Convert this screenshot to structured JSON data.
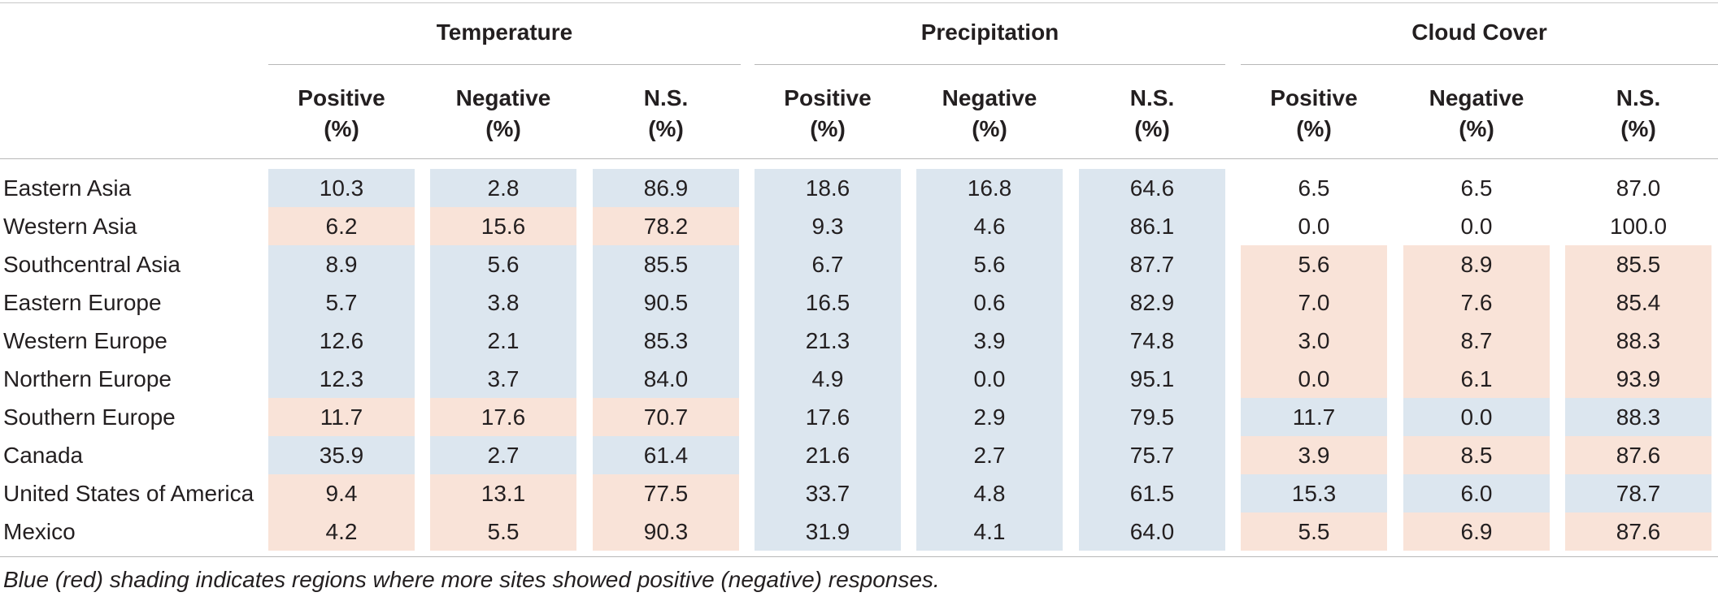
{
  "groups": [
    "Temperature",
    "Precipitation",
    "Cloud Cover"
  ],
  "subheaders": [
    {
      "line1": "Positive",
      "line2": "(%)"
    },
    {
      "line1": "Negative",
      "line2": "(%)"
    },
    {
      "line1": "N.S.",
      "line2": "(%)"
    }
  ],
  "shade_colors": {
    "positive": "#dce6ef",
    "negative": "#f9e3d8"
  },
  "rows": [
    {
      "region": "Eastern Asia",
      "values": [
        "10.3",
        "2.8",
        "86.9",
        "18.6",
        "16.8",
        "64.6",
        "6.5",
        "6.5",
        "87.0"
      ],
      "shading": [
        "positive",
        "positive",
        "none"
      ]
    },
    {
      "region": "Western Asia",
      "values": [
        "6.2",
        "15.6",
        "78.2",
        "9.3",
        "4.6",
        "86.1",
        "0.0",
        "0.0",
        "100.0"
      ],
      "shading": [
        "negative",
        "positive",
        "none"
      ]
    },
    {
      "region": "Southcentral Asia",
      "values": [
        "8.9",
        "5.6",
        "85.5",
        "6.7",
        "5.6",
        "87.7",
        "5.6",
        "8.9",
        "85.5"
      ],
      "shading": [
        "positive",
        "positive",
        "negative"
      ]
    },
    {
      "region": "Eastern Europe",
      "values": [
        "5.7",
        "3.8",
        "90.5",
        "16.5",
        "0.6",
        "82.9",
        "7.0",
        "7.6",
        "85.4"
      ],
      "shading": [
        "positive",
        "positive",
        "negative"
      ]
    },
    {
      "region": "Western Europe",
      "values": [
        "12.6",
        "2.1",
        "85.3",
        "21.3",
        "3.9",
        "74.8",
        "3.0",
        "8.7",
        "88.3"
      ],
      "shading": [
        "positive",
        "positive",
        "negative"
      ]
    },
    {
      "region": "Northern Europe",
      "values": [
        "12.3",
        "3.7",
        "84.0",
        "4.9",
        "0.0",
        "95.1",
        "0.0",
        "6.1",
        "93.9"
      ],
      "shading": [
        "positive",
        "positive",
        "negative"
      ]
    },
    {
      "region": "Southern Europe",
      "values": [
        "11.7",
        "17.6",
        "70.7",
        "17.6",
        "2.9",
        "79.5",
        "11.7",
        "0.0",
        "88.3"
      ],
      "shading": [
        "negative",
        "positive",
        "positive"
      ]
    },
    {
      "region": "Canada",
      "values": [
        "35.9",
        "2.7",
        "61.4",
        "21.6",
        "2.7",
        "75.7",
        "3.9",
        "8.5",
        "87.6"
      ],
      "shading": [
        "positive",
        "positive",
        "negative"
      ]
    },
    {
      "region": "United States of America",
      "values": [
        "9.4",
        "13.1",
        "77.5",
        "33.7",
        "4.8",
        "61.5",
        "15.3",
        "6.0",
        "78.7"
      ],
      "shading": [
        "negative",
        "positive",
        "positive"
      ]
    },
    {
      "region": "Mexico",
      "values": [
        "4.2",
        "5.5",
        "90.3",
        "31.9",
        "4.1",
        "64.0",
        "5.5",
        "6.9",
        "87.6"
      ],
      "shading": [
        "negative",
        "positive",
        "negative"
      ]
    }
  ],
  "footnote": "Blue (red) shading indicates regions where more sites showed positive (negative) responses."
}
